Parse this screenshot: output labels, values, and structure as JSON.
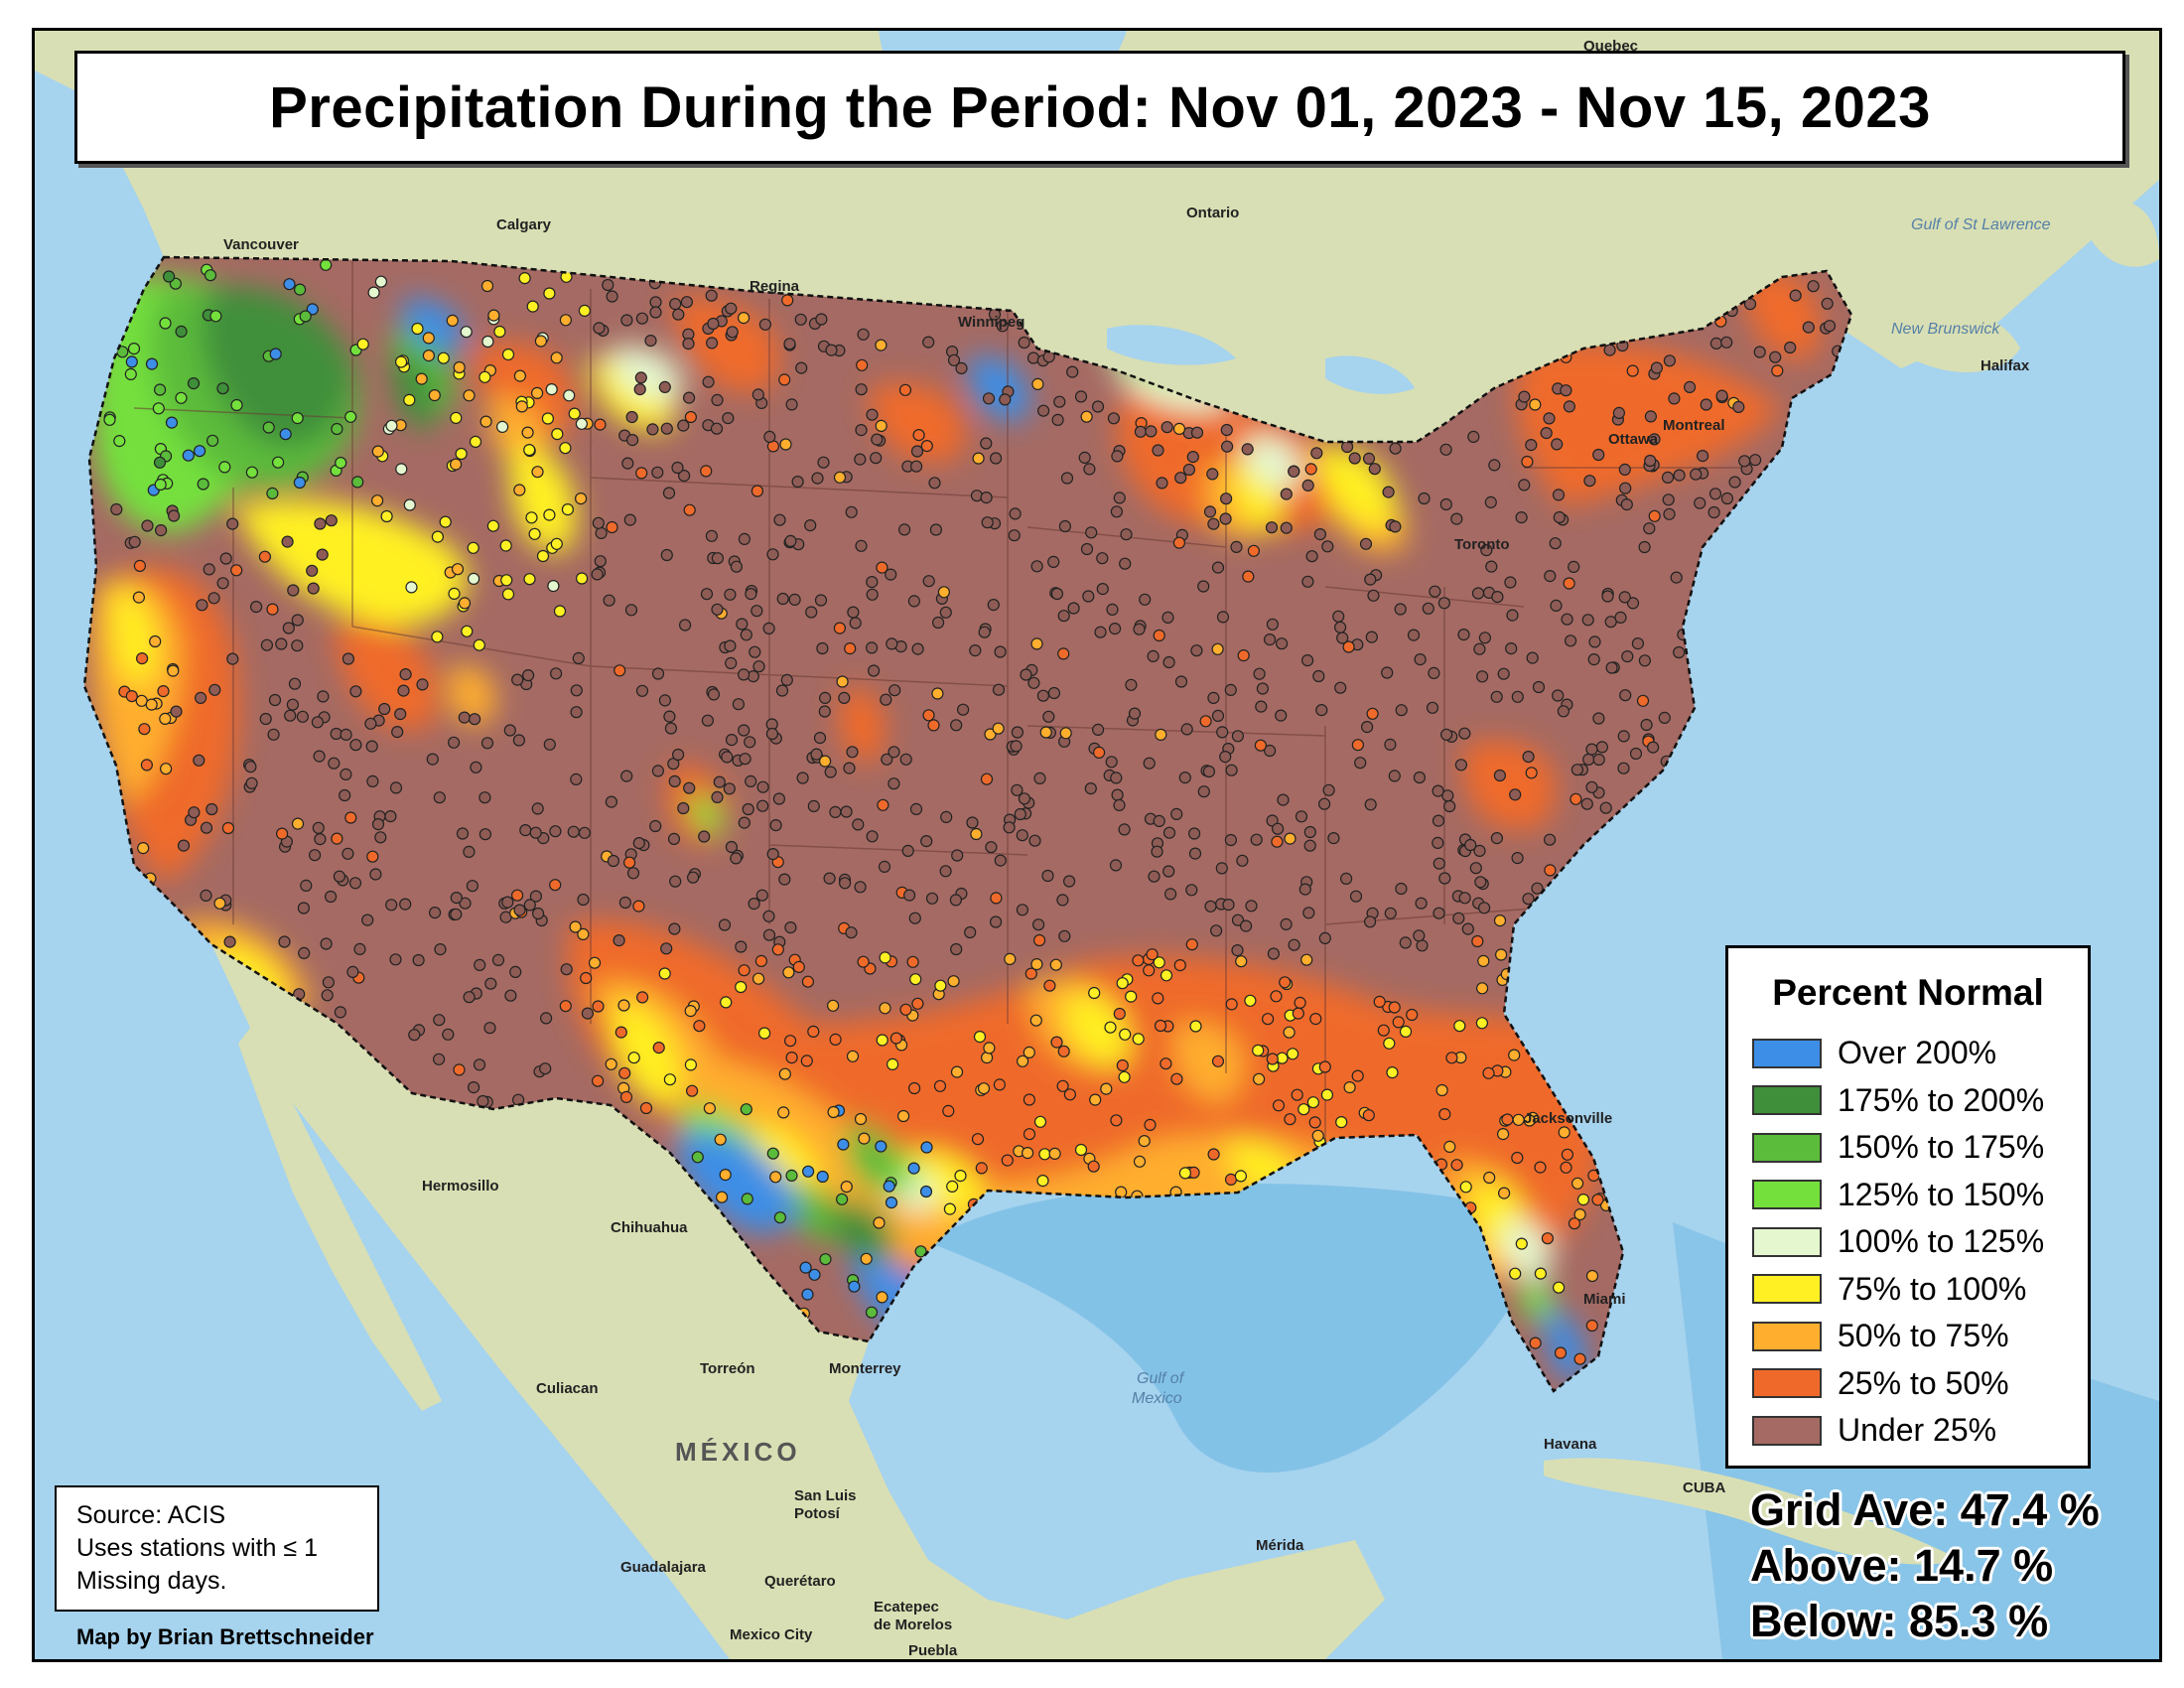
{
  "title": "Precipitation During the Period: Nov 01, 2023 - Nov 15, 2023",
  "legend": {
    "title": "Percent Normal",
    "items": [
      {
        "label": "Over 200%",
        "color": "#3d8ee6"
      },
      {
        "label": "175% to 200%",
        "color": "#3f8f3a"
      },
      {
        "label": "150% to 175%",
        "color": "#5bbb3a"
      },
      {
        "label": "125% to 150%",
        "color": "#74e03c"
      },
      {
        "label": "100% to 125%",
        "color": "#e4f7cf"
      },
      {
        "label": "75% to 100%",
        "color": "#fff024"
      },
      {
        "label": "50% to 75%",
        "color": "#ffae2e"
      },
      {
        "label": "25% to 50%",
        "color": "#ef6a2a"
      },
      {
        "label": "Under 25%",
        "color": "#a56a63"
      }
    ]
  },
  "source": {
    "line1": "Source: ACIS",
    "line2": "Uses stations with ≤ 1",
    "line3": "Missing days."
  },
  "credit": "Map by Brian Brettschneider",
  "stats": {
    "grid_ave": "Grid Ave: 47.4 %",
    "above": "Above: 14.7 %",
    "below": "Below: 85.3 %"
  },
  "places": {
    "vancouver": "Vancouver",
    "calgary": "Calgary",
    "regina": "Regina",
    "winnipeg": "Winnipeg",
    "ontario": "Ontario",
    "quebec": "Quebec",
    "ottawa": "Ottawa",
    "montreal": "Montreal",
    "toronto": "Toronto",
    "halifax": "Halifax",
    "new_brunswick": "New Brunswick",
    "gulf_st_lawrence": "Gulf of St Lawrence",
    "hermosillo": "Hermosillo",
    "chihuahua": "Chihuahua",
    "culiacan": "Culiacan",
    "torreon": "Torreón",
    "monterrey": "Monterrey",
    "mexico": "MÉXICO",
    "san_luis_potosi_1": "San Luis",
    "san_luis_potosi_2": "Potosí",
    "guadalajara": "Guadalajara",
    "queretaro": "Querétaro",
    "ecatepec_1": "Ecatepec",
    "ecatepec_2": "de Morelos",
    "mexico_city": "Mexico City",
    "puebla": "Puebla",
    "merida": "Mérida",
    "havana": "Havana",
    "cuba": "CUBA",
    "gulf_of_mexico_1": "Gulf of",
    "gulf_of_mexico_2": "Mexico",
    "jacksonville": "Jacksonville",
    "miami": "Miami"
  },
  "map_colors": {
    "ocean": "#a6d3ee",
    "land": "#d9dfb4",
    "station_outline": "#222222"
  }
}
